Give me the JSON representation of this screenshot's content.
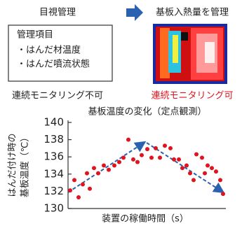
{
  "left_panel": {
    "title": "目視管理",
    "box_title": "管理項目",
    "items": [
      "・はんだ材温度",
      "・はんだ噴流状態"
    ],
    "caption": "連続モニタリング不可"
  },
  "right_panel": {
    "title": "基板入熱量を管理",
    "caption": "連続モニタリング可"
  },
  "chart_data": {
    "type": "scatter",
    "title": "基板温度の変化（定点観測）",
    "x_label": "装置の稼働時間（s）",
    "y_label": [
      "はんだ付け時の",
      "基板温度（℃）"
    ],
    "color": "#e0141e",
    "xlim": [
      0,
      225
    ],
    "ylim": [
      130,
      140
    ],
    "yticks": [
      130,
      132,
      134,
      136,
      138,
      140
    ],
    "x": [
      3,
      9,
      15,
      21,
      27,
      31,
      37,
      43,
      51,
      58,
      66,
      73,
      79,
      86,
      93,
      99,
      105,
      113,
      119,
      125,
      131,
      138,
      146,
      151,
      158,
      163,
      169,
      174,
      179,
      183,
      191,
      195,
      199,
      205,
      211,
      217,
      221
    ],
    "values": [
      132.1,
      133.3,
      131.3,
      132.8,
      134.1,
      132.3,
      134.7,
      134.1,
      135.0,
      134.5,
      135.0,
      135.4,
      135.9,
      138.0,
      135.7,
      135.4,
      136.2,
      136.9,
      135.9,
      137.0,
      135.9,
      137.3,
      137.0,
      135.7,
      135.7,
      134.7,
      135.0,
      134.1,
      133.3,
      136.3,
      135.9,
      134.1,
      135.0,
      134.7,
      134.3,
      133.3,
      131.7
    ]
  }
}
